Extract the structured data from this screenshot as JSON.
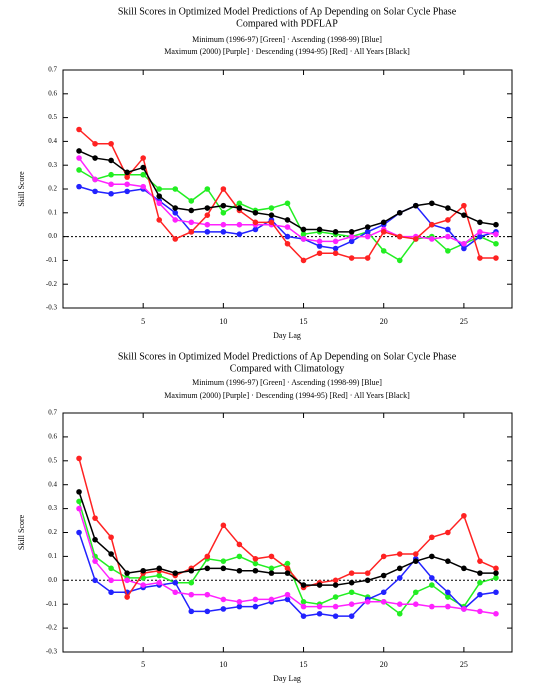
{
  "chart_data": [
    {
      "type": "line",
      "title": "Skill Scores in Optimized Model Predictions of Ap Depending on Solar Cycle Phase",
      "subtitle": "Compared with PDFLAP",
      "annotations": [
        "Minimum (1996-97) [Green] · Ascending (1998-99) [Blue]",
        "Maximum (2000) [Purple] · Descending (1994-95) [Red] · All Years [Black]"
      ],
      "xlabel": "Day Lag",
      "ylabel": "Skill Score",
      "x": [
        1,
        2,
        3,
        4,
        5,
        6,
        7,
        8,
        9,
        10,
        11,
        12,
        13,
        14,
        15,
        16,
        17,
        18,
        19,
        20,
        21,
        22,
        23,
        24,
        25,
        26,
        27
      ],
      "xlim": [
        0,
        28
      ],
      "xticks": [
        5,
        10,
        15,
        20,
        25
      ],
      "ylim": [
        -0.3,
        0.7
      ],
      "yticks": [
        0.7,
        0.6,
        0.5,
        0.4,
        0.3,
        0.2,
        0.1,
        {
          "value": 0,
          "label": "0.0"
        },
        -0.1,
        -0.2,
        -0.3
      ],
      "series": [
        {
          "color": "#22ee22",
          "values": [
            0.28,
            0.24,
            0.26,
            0.26,
            0.26,
            0.2,
            0.2,
            0.15,
            0.2,
            0.1,
            0.14,
            0.11,
            0.12,
            0.14,
            0.01,
            0.02,
            0.01,
            0.0,
            0.02,
            -0.06,
            -0.1,
            -0.01,
            0.0,
            -0.06,
            -0.03,
            0.0,
            -0.03
          ]
        },
        {
          "color": "#2222ff",
          "values": [
            0.21,
            0.19,
            0.18,
            0.19,
            0.2,
            0.15,
            0.1,
            0.02,
            0.02,
            0.02,
            0.01,
            0.03,
            0.07,
            0.0,
            -0.01,
            -0.04,
            -0.05,
            -0.02,
            0.02,
            0.05,
            0.1,
            0.13,
            0.05,
            0.03,
            -0.05,
            0.0,
            0.02
          ]
        },
        {
          "color": "#ff22ff",
          "values": [
            0.33,
            0.24,
            0.22,
            0.22,
            0.21,
            0.14,
            0.07,
            0.06,
            0.05,
            0.05,
            0.05,
            0.05,
            0.05,
            0.04,
            -0.01,
            -0.02,
            -0.02,
            0.0,
            0.0,
            0.03,
            0.0,
            0.0,
            -0.01,
            0.0,
            -0.03,
            0.02,
            0.01
          ]
        },
        {
          "color": "#ff2222",
          "values": [
            0.45,
            0.39,
            0.39,
            0.25,
            0.33,
            0.07,
            -0.01,
            0.02,
            0.09,
            0.2,
            0.11,
            0.06,
            0.06,
            -0.03,
            -0.1,
            -0.07,
            -0.07,
            -0.09,
            -0.09,
            0.02,
            0.0,
            -0.01,
            0.05,
            0.07,
            0.13,
            -0.09,
            -0.09
          ]
        },
        {
          "color": "#000000",
          "values": [
            0.36,
            0.33,
            0.32,
            0.27,
            0.29,
            0.17,
            0.12,
            0.11,
            0.12,
            0.13,
            0.12,
            0.1,
            0.09,
            0.07,
            0.03,
            0.03,
            0.02,
            0.02,
            0.04,
            0.06,
            0.1,
            0.13,
            0.14,
            0.12,
            0.09,
            0.06,
            0.05
          ]
        }
      ]
    },
    {
      "type": "line",
      "title": "Skill Scores in Optimized Model Predictions of Ap Depending on Solar Cycle Phase",
      "subtitle": "Compared with Climatology",
      "annotations": [
        "Minimum (1996-97) [Green] · Ascending (1998-99) [Blue]",
        "Maximum (2000) [Purple] · Descending (1994-95) [Red] · All Years [Black]"
      ],
      "xlabel": "Day Lag",
      "ylabel": "Skill Score",
      "x": [
        1,
        2,
        3,
        4,
        5,
        6,
        7,
        8,
        9,
        10,
        11,
        12,
        13,
        14,
        15,
        16,
        17,
        18,
        19,
        20,
        21,
        22,
        23,
        24,
        25,
        26,
        27
      ],
      "xlim": [
        0,
        28
      ],
      "xticks": [
        5,
        10,
        15,
        20,
        25
      ],
      "ylim": [
        -0.3,
        0.7
      ],
      "yticks": [
        0.7,
        0.6,
        0.5,
        0.4,
        0.3,
        0.2,
        0.1,
        {
          "value": 0,
          "label": "0.0"
        },
        -0.1,
        -0.2,
        -0.3
      ],
      "series": [
        {
          "color": "#22ee22",
          "values": [
            0.33,
            0.1,
            0.05,
            0.01,
            0.01,
            0.02,
            -0.01,
            -0.01,
            0.09,
            0.08,
            0.1,
            0.07,
            0.05,
            0.07,
            -0.09,
            -0.1,
            -0.07,
            -0.05,
            -0.07,
            -0.09,
            -0.14,
            -0.05,
            -0.02,
            -0.07,
            -0.11,
            -0.01,
            0.01
          ]
        },
        {
          "color": "#2222ff",
          "values": [
            0.2,
            0.0,
            -0.05,
            -0.05,
            -0.03,
            -0.02,
            -0.01,
            -0.13,
            -0.13,
            -0.12,
            -0.11,
            -0.11,
            -0.09,
            -0.08,
            -0.15,
            -0.14,
            -0.15,
            -0.15,
            -0.08,
            -0.05,
            0.01,
            0.09,
            0.01,
            -0.05,
            -0.12,
            -0.06,
            -0.05
          ]
        },
        {
          "color": "#ff22ff",
          "values": [
            0.3,
            0.08,
            0.0,
            0.0,
            -0.02,
            -0.01,
            -0.05,
            -0.06,
            -0.06,
            -0.08,
            -0.09,
            -0.08,
            -0.08,
            -0.06,
            -0.11,
            -0.11,
            -0.11,
            -0.1,
            -0.09,
            -0.09,
            -0.1,
            -0.1,
            -0.11,
            -0.11,
            -0.12,
            -0.13,
            -0.14
          ]
        },
        {
          "color": "#ff2222",
          "values": [
            0.51,
            0.26,
            0.18,
            -0.07,
            0.03,
            0.04,
            0.02,
            0.05,
            0.1,
            0.23,
            0.15,
            0.09,
            0.1,
            0.05,
            -0.03,
            -0.01,
            0.0,
            0.03,
            0.03,
            0.1,
            0.11,
            0.11,
            0.18,
            0.2,
            0.27,
            0.08,
            0.05
          ]
        },
        {
          "color": "#000000",
          "values": [
            0.37,
            0.17,
            0.11,
            0.03,
            0.04,
            0.05,
            0.03,
            0.04,
            0.05,
            0.05,
            0.04,
            0.04,
            0.03,
            0.03,
            -0.02,
            -0.02,
            -0.02,
            -0.01,
            0.0,
            0.02,
            0.05,
            0.08,
            0.1,
            0.08,
            0.05,
            0.03,
            0.03
          ]
        }
      ]
    }
  ]
}
